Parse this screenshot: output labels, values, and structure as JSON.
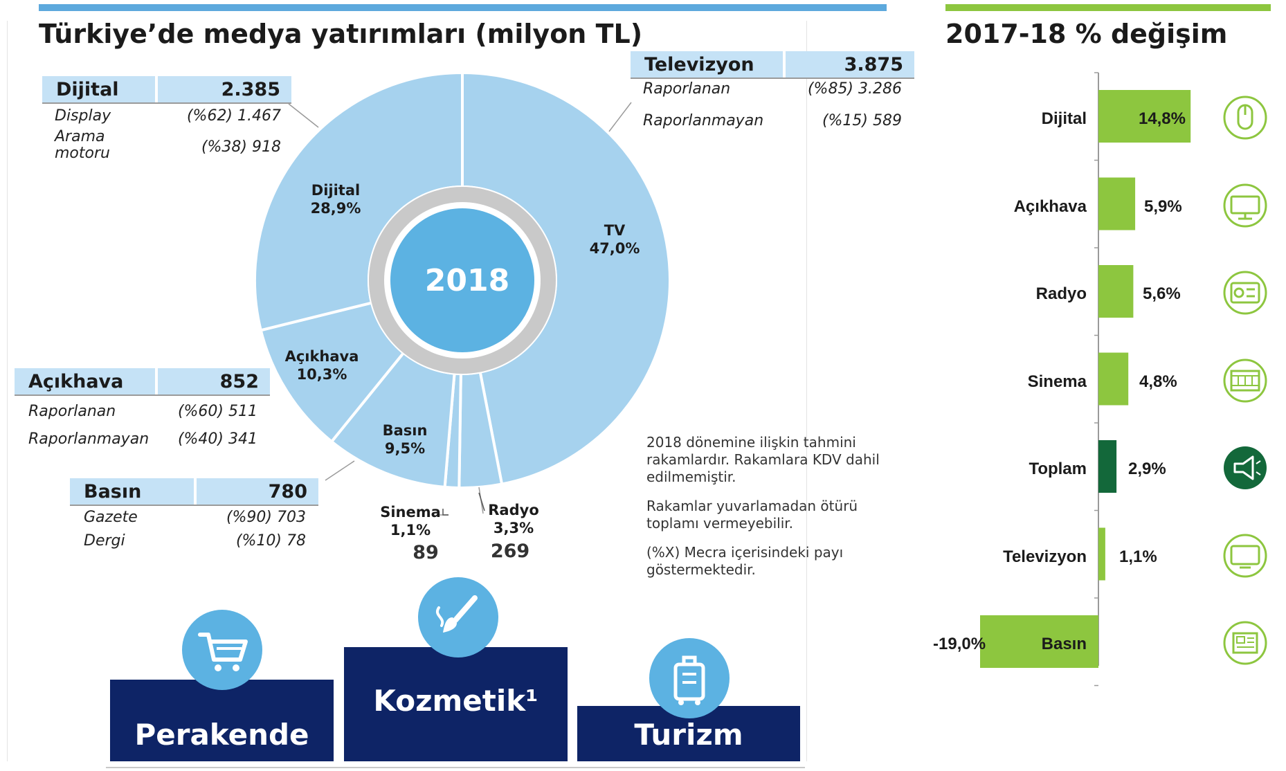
{
  "left_title": "Türkiye’de medya yatırımları (milyon TL)",
  "right_title": "2017-18 % değişim",
  "donut": {
    "center_label": "2018",
    "fill_color": "#a6d2ee",
    "center_color": "#5cb2e2",
    "ring_color": "#c9c9c9",
    "slice_labels": {
      "dijital": {
        "name": "Dijital",
        "pct": "28,9%"
      },
      "tv": {
        "name": "TV",
        "pct": "47,0%"
      },
      "acikhava": {
        "name": "Açıkhava",
        "pct": "10,3%"
      },
      "basin": {
        "name": "Basın",
        "pct": "9,5%"
      },
      "sinema": {
        "name": "Sinema",
        "pct": "1,1%"
      },
      "radyo": {
        "name": "Radyo",
        "pct": "3,3%"
      }
    },
    "sinema_value": "89",
    "radyo_value": "269"
  },
  "boxes": {
    "dijital": {
      "title": "Dijital",
      "total": "2.385",
      "rows": [
        {
          "label": "Display",
          "value": "(%62) 1.467"
        },
        {
          "label": "Arama motoru",
          "label_line1": "Arama",
          "label_line2": "motoru",
          "value": "(%38) 918"
        }
      ]
    },
    "televizyon": {
      "title": "Televizyon",
      "total": "3.875",
      "rows": [
        {
          "label": "Raporlanan",
          "value": "(%85) 3.286"
        },
        {
          "label": "Raporlanmayan",
          "value": "(%15) 589"
        }
      ]
    },
    "acikhava": {
      "title": "Açıkhava",
      "total": "852",
      "rows": [
        {
          "label": "Raporlanan",
          "value": "(%60) 511"
        },
        {
          "label": "Raporlanmayan",
          "value": "(%40) 341"
        }
      ]
    },
    "basin": {
      "title": "Basın",
      "total": "780",
      "rows": [
        {
          "label": "Gazete",
          "value": "(%90) 703"
        },
        {
          "label": "Dergi",
          "value": "(%10) 78"
        }
      ]
    }
  },
  "notes": [
    {
      "l1": "2018 dönemine ilişkin tahmini",
      "l2": "rakamlardır. Rakamlara KDV dahil",
      "l3": "edilmemiştir."
    },
    {
      "l1": "Rakamlar yuvarlamadan ötürü",
      "l2": "toplamı vermeyebilir."
    },
    {
      "l1": "(%X) Mecra içerisindeki payı",
      "l2": "göstermektedir."
    }
  ],
  "sectors": {
    "perakende": "Perakende",
    "kozmetik": "Kozmetik¹",
    "turizm": "Turizm",
    "box_color": "#0e2466"
  },
  "change_labels": {
    "dijital": "14,8%",
    "acikhava": "5,9%",
    "radyo": "5,6%",
    "sinema": "4,8%",
    "toplam": "2,9%",
    "televizyon": "1,1%",
    "basin": "-19,0%"
  },
  "change_icons": [
    "mouse-icon",
    "billboard-icon",
    "radio-icon",
    "film-icon",
    "megaphone-icon",
    "tv-icon",
    "newspaper-icon"
  ],
  "chart_data": [
    {
      "type": "pie",
      "title": "Türkiye’de medya yatırımları (milyon TL)",
      "center_label": "2018",
      "categories": [
        "TV",
        "Radyo",
        "Sinema",
        "Basın",
        "Açıkhava",
        "Dijital"
      ],
      "percent_labels": [
        "47,0%",
        "3,3%",
        "1,1%",
        "9,5%",
        "10,3%",
        "28,9%"
      ],
      "values": [
        47.0,
        3.3,
        1.1,
        9.5,
        10.3,
        28.9
      ],
      "amounts_million_tl": [
        3875,
        269,
        89,
        780,
        852,
        2385
      ]
    },
    {
      "type": "bar",
      "orientation": "horizontal",
      "title": "2017-18 % değişim",
      "categories": [
        "Dijital",
        "Açıkhava",
        "Radyo",
        "Sinema",
        "Toplam",
        "Televizyon",
        "Basın"
      ],
      "values": [
        14.8,
        5.9,
        5.6,
        4.8,
        2.9,
        1.1,
        -19.0
      ],
      "value_labels": [
        "14,8%",
        "5,9%",
        "5,6%",
        "4,8%",
        "2,9%",
        "1,1%",
        "-19,0%"
      ],
      "colors": [
        "#8dc63f",
        "#8dc63f",
        "#8dc63f",
        "#8dc63f",
        "#13683a",
        "#8dc63f",
        "#8dc63f"
      ],
      "highlight": "Toplam"
    }
  ]
}
